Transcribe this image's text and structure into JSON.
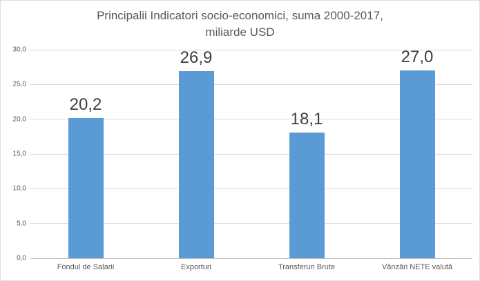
{
  "chart_data": {
    "type": "bar",
    "title": "Principalii Indicatori socio-economici, suma 2000-2017, miliarde USD",
    "title_line1": "Principalii Indicatori socio-economici, suma 2000-2017,",
    "title_line2": "miliarde USD",
    "categories": [
      "Fondul de Salarii",
      "Exporturi",
      "Transferuri Brute",
      "Vânzări NETE valută"
    ],
    "values": [
      20.2,
      26.9,
      18.1,
      27.0
    ],
    "value_labels": [
      "20,2",
      "26,9",
      "18,1",
      "27,0"
    ],
    "xlabel": "",
    "ylabel": "",
    "ylim": [
      0,
      30
    ],
    "ytick_step": 5,
    "yticks": [
      {
        "value": 0,
        "label": "0,0"
      },
      {
        "value": 5,
        "label": "5,0"
      },
      {
        "value": 10,
        "label": "10,0"
      },
      {
        "value": 15,
        "label": "15,0"
      },
      {
        "value": 20,
        "label": "20,0"
      },
      {
        "value": 25,
        "label": "25,0"
      },
      {
        "value": 30,
        "label": "30,0"
      }
    ],
    "grid": true,
    "legend_position": "none",
    "colors": {
      "bar": "#5B9BD5",
      "title_text": "#595959",
      "axis_text": "#595959",
      "value_label_text": "#404040",
      "gridline": "#D9D9D9",
      "axis_line": "#BFBFBF",
      "background": "#FFFFFF",
      "border": "#D9DDE3"
    }
  }
}
